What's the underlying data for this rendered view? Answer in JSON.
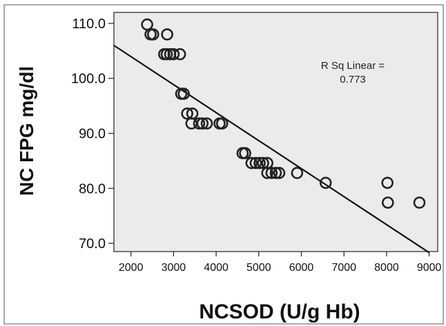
{
  "chart_data": {
    "type": "scatter",
    "title": "",
    "xlabel": "NCSOD (U/g Hb)",
    "ylabel": "NC FPG mg/dl",
    "xlim": [
      1600,
      9200
    ],
    "ylim": [
      68.5,
      112
    ],
    "x_ticks": [
      2000,
      3000,
      4000,
      5000,
      6000,
      7000,
      8000,
      9000
    ],
    "y_ticks": [
      70,
      80,
      90,
      100,
      110
    ],
    "y_tick_labels": [
      "70.0",
      "80.0",
      "90.0",
      "100.0",
      "110.0"
    ],
    "grid": false,
    "background": "#ebebeb",
    "marker_color": "#222222",
    "line_color": "#111111",
    "annotation": {
      "line1": "R Sq Linear =",
      "line2": "0.773"
    },
    "fit_line": {
      "x": [
        1600,
        9000
      ],
      "y": [
        106,
        68.3
      ]
    },
    "points": [
      {
        "x": 2380,
        "y": 109.8
      },
      {
        "x": 2460,
        "y": 108.0
      },
      {
        "x": 2520,
        "y": 108.0
      },
      {
        "x": 2850,
        "y": 108.0
      },
      {
        "x": 2780,
        "y": 104.4
      },
      {
        "x": 2840,
        "y": 104.4
      },
      {
        "x": 2920,
        "y": 104.4
      },
      {
        "x": 3000,
        "y": 104.4
      },
      {
        "x": 3150,
        "y": 104.4
      },
      {
        "x": 3180,
        "y": 97.2
      },
      {
        "x": 3240,
        "y": 97.2
      },
      {
        "x": 3320,
        "y": 93.6
      },
      {
        "x": 3440,
        "y": 93.6
      },
      {
        "x": 3420,
        "y": 91.8
      },
      {
        "x": 3600,
        "y": 91.8
      },
      {
        "x": 3680,
        "y": 91.8
      },
      {
        "x": 3780,
        "y": 91.8
      },
      {
        "x": 4080,
        "y": 91.8
      },
      {
        "x": 4140,
        "y": 91.8
      },
      {
        "x": 4620,
        "y": 86.4
      },
      {
        "x": 4680,
        "y": 86.4
      },
      {
        "x": 4830,
        "y": 84.6
      },
      {
        "x": 4930,
        "y": 84.6
      },
      {
        "x": 5020,
        "y": 84.6
      },
      {
        "x": 5100,
        "y": 84.6
      },
      {
        "x": 5200,
        "y": 84.6
      },
      {
        "x": 5200,
        "y": 82.8
      },
      {
        "x": 5300,
        "y": 82.8
      },
      {
        "x": 5400,
        "y": 82.8
      },
      {
        "x": 5480,
        "y": 82.8
      },
      {
        "x": 5900,
        "y": 82.8
      },
      {
        "x": 6570,
        "y": 81.0
      },
      {
        "x": 8020,
        "y": 81.0
      },
      {
        "x": 8030,
        "y": 77.4
      },
      {
        "x": 8770,
        "y": 77.4
      }
    ]
  }
}
